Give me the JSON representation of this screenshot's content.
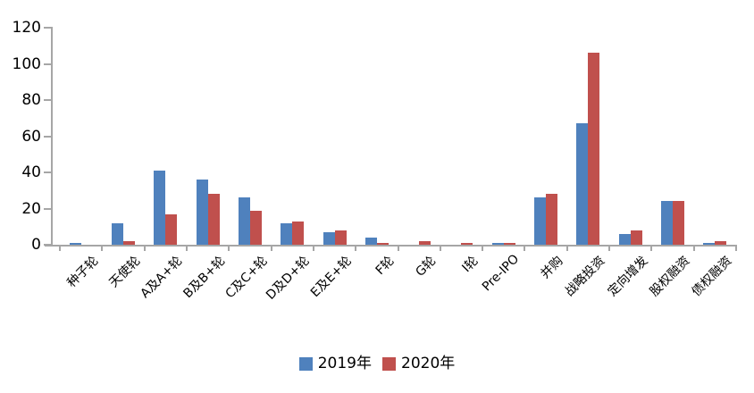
{
  "chart_data": {
    "type": "bar",
    "title": "",
    "xlabel": "",
    "ylabel": "",
    "categories": [
      "种子轮",
      "天使轮",
      "A及A+轮",
      "B及B+轮",
      "C及C+轮",
      "D及D+轮",
      "E及E+轮",
      "F轮",
      "G轮",
      "I轮",
      "Pre-IPO",
      "并购",
      "战略投资",
      "定向增发",
      "股权融资",
      "债权融资"
    ],
    "series": [
      {
        "name": "2019年",
        "color": "#4F81BD",
        "values": [
          1,
          12,
          41,
          36,
          26,
          12,
          7,
          4,
          0,
          0,
          1,
          26,
          67,
          6,
          24,
          1
        ]
      },
      {
        "name": "2020年",
        "color": "#C0504D",
        "values": [
          0,
          2,
          17,
          28,
          19,
          13,
          8,
          1,
          2,
          1,
          1,
          28,
          106,
          8,
          24,
          2
        ]
      }
    ],
    "ylim": [
      0,
      120
    ],
    "yticks": [
      0,
      20,
      40,
      60,
      80,
      100,
      120
    ],
    "grid": false,
    "legend_position": "bottom"
  },
  "colors": {
    "axis": "#A6A6A6",
    "text": "#000000",
    "background": "#FFFFFF",
    "series_2019": "#4F81BD",
    "series_2020": "#C0504D"
  }
}
